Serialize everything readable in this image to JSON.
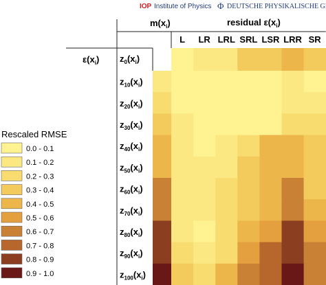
{
  "header": {
    "iop_brand": "IOP",
    "iop_name": "Institute of Physics",
    "dpg_symbol": "Φ",
    "dpg_name": "DEUTSCHE PHYSIKALISCHE GESELLSCHAFT"
  },
  "colors": {
    "brand_red": "#cc1f26",
    "brand_blue": "#1f3a7a",
    "scale": [
      "#fff291",
      "#fbe883",
      "#f8dc70",
      "#f3ca5c",
      "#edb64a",
      "#e4a03f",
      "#c98135",
      "#b7672c",
      "#8c3e20",
      "#6a1718"
    ]
  },
  "chart_data": {
    "type": "heatmap",
    "title": "",
    "col_axis": {
      "prefix": "residual ε(x",
      "sub": "i",
      "suffix": ")"
    },
    "row_axis_top": {
      "prefix": "m(x",
      "sub": "i",
      "suffix": ")"
    },
    "row_axis_left": {
      "prefix": "ε(x",
      "sub": "i",
      "suffix": ")"
    },
    "columns": [
      "L",
      "LR",
      "LRL",
      "SRL",
      "LSR",
      "LRR",
      "SR"
    ],
    "row0": {
      "base": "z",
      "sub": "0",
      "suffix": "(x",
      "sub2": "i",
      "tail": ")"
    },
    "row0_values": [
      0.0,
      0.1,
      0.1,
      0.3,
      0.3,
      0.4,
      0.3
    ],
    "rows": [
      {
        "base": "z",
        "sub": "10",
        "suffix": "(x",
        "sub2": "i",
        "tail": ")"
      },
      {
        "base": "z",
        "sub": "20",
        "suffix": "(x",
        "sub2": "i",
        "tail": ")"
      },
      {
        "base": "z",
        "sub": "30",
        "suffix": "(x",
        "sub2": "i",
        "tail": ")"
      },
      {
        "base": "z",
        "sub": "40",
        "suffix": "(x",
        "sub2": "i",
        "tail": ")"
      },
      {
        "base": "z",
        "sub": "50",
        "suffix": "(x",
        "sub2": "i",
        "tail": ")"
      },
      {
        "base": "z",
        "sub": "60",
        "suffix": "(x",
        "sub2": "i",
        "tail": ")"
      },
      {
        "base": "z",
        "sub": "70",
        "suffix": "(x",
        "sub2": "i",
        "tail": ")"
      },
      {
        "base": "z",
        "sub": "80",
        "suffix": "(x",
        "sub2": "i",
        "tail": ")"
      },
      {
        "base": "z",
        "sub": "90",
        "suffix": "(x",
        "sub2": "i",
        "tail": ")"
      },
      {
        "base": "z",
        "sub": "100",
        "suffix": "(x",
        "sub2": "i",
        "tail": ")"
      }
    ],
    "row_col0_values": [
      0.1,
      0.2,
      0.3,
      0.4,
      0.4,
      0.6,
      0.6,
      0.8,
      0.8,
      0.9
    ],
    "values": [
      [
        0.0,
        0.0,
        0.0,
        0.0,
        0.0,
        0.1,
        0.0
      ],
      [
        0.0,
        0.0,
        0.0,
        0.0,
        0.0,
        0.1,
        0.1
      ],
      [
        0.1,
        0.0,
        0.0,
        0.0,
        0.0,
        0.2,
        0.2
      ],
      [
        0.1,
        0.0,
        0.1,
        0.2,
        0.4,
        0.4,
        0.3
      ],
      [
        0.1,
        0.1,
        0.1,
        0.3,
        0.4,
        0.4,
        0.3
      ],
      [
        0.1,
        0.1,
        0.2,
        0.3,
        0.4,
        0.6,
        0.3
      ],
      [
        0.1,
        0.1,
        0.2,
        0.3,
        0.4,
        0.6,
        0.4
      ],
      [
        0.1,
        0.0,
        0.2,
        0.4,
        0.5,
        0.8,
        0.5
      ],
      [
        0.2,
        0.1,
        0.2,
        0.5,
        0.7,
        0.8,
        0.6
      ],
      [
        0.3,
        0.2,
        0.4,
        0.6,
        0.7,
        0.9,
        0.6
      ]
    ],
    "legend": {
      "title": "Rescaled RMSE",
      "entries": [
        "0.0 - 0.1",
        "0.1 - 0.2",
        "0.2 - 0.3",
        "0.3 - 0.4",
        "0.4 - 0.5",
        "0.5 - 0.6",
        "0.6 - 0.7",
        "0.7 - 0.8",
        "0.8 - 0.9",
        "0.9 - 1.0"
      ]
    }
  }
}
